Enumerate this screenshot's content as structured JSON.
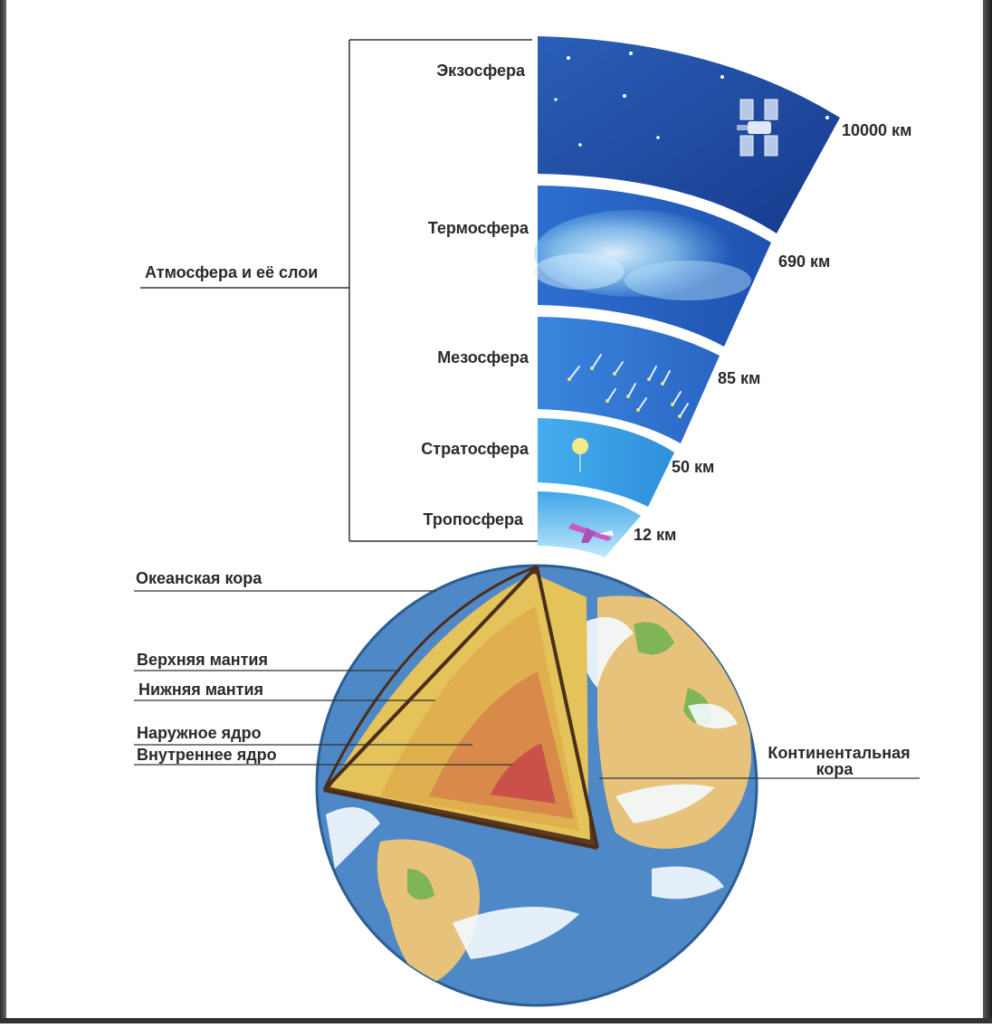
{
  "atmosphere": {
    "group_label": "Атмосфера и её слои",
    "layers": [
      {
        "name": "Экзосфера",
        "altitude": "10000 км"
      },
      {
        "name": "Термосфера",
        "altitude": "690 км"
      },
      {
        "name": "Мезосфера",
        "altitude": "85 км"
      },
      {
        "name": "Стратосфера",
        "altitude": "50 км"
      },
      {
        "name": "Тропосфера",
        "altitude": "12 км"
      }
    ]
  },
  "earth": {
    "labels": {
      "oceanic_crust": "Океанская кора",
      "upper_mantle": "Верхняя мантия",
      "lower_mantle": "Нижняя мантия",
      "outer_core": "Наружное ядро",
      "inner_core": "Внутреннее ядро",
      "continental_crust_line1": "Континентальная",
      "continental_crust_line2": "кора"
    }
  },
  "colors": {
    "exosphere": "#1b3f93",
    "thermosphere": "#2463c4",
    "mesosphere": "#2f7fdb",
    "stratosphere": "#38a6ec",
    "troposphere": "#5cc4f4",
    "ocean": "#4f88c6",
    "land": "#e7c27a",
    "upper_mantle": "#e4c35a",
    "lower_mantle": "#e0a24e",
    "outer_core": "#d9864a",
    "inner_core": "#c9514a"
  }
}
